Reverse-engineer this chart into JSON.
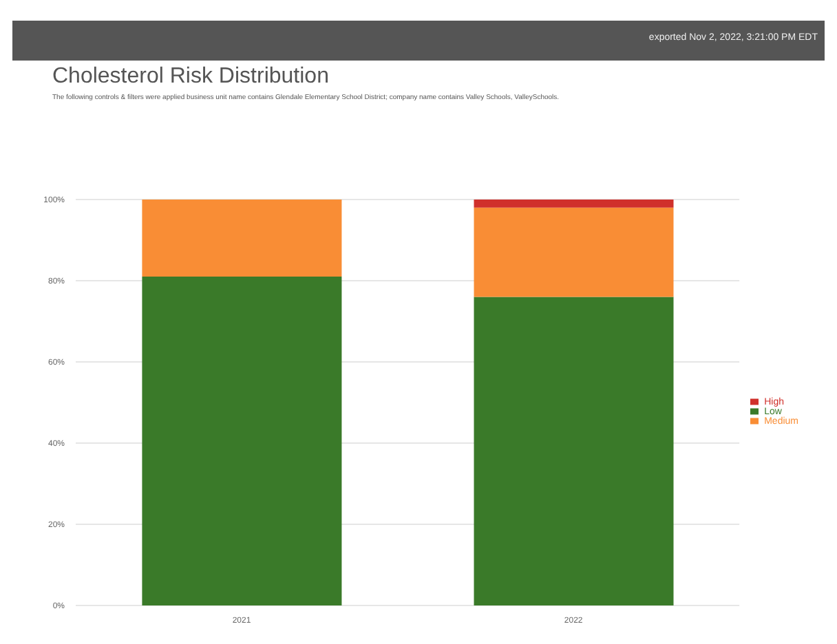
{
  "chart_data": {
    "type": "bar",
    "title": "Cholesterol Risk Distribution",
    "subtitle": "The following controls & filters were applied business unit name contains Glendale Elementary School District; company name contains Valley Schools, ValleySchools.",
    "annotations": [
      "exported Nov 2, 2022, 3:21:00 PM EDT"
    ],
    "categories": [
      "2021",
      "2022"
    ],
    "series": [
      {
        "name": "Low",
        "color": "#3a7a29",
        "values": [
          81,
          76
        ]
      },
      {
        "name": "Medium",
        "color": "#f98d35",
        "values": [
          19,
          22
        ]
      },
      {
        "name": "High",
        "color": "#d0302b",
        "values": [
          0,
          2
        ]
      }
    ],
    "stacked": true,
    "ylim": [
      0,
      100
    ],
    "yticks": [
      {
        "value": 0,
        "label": "0%"
      },
      {
        "value": 20,
        "label": "20%"
      },
      {
        "value": 40,
        "label": "40%"
      },
      {
        "value": 60,
        "label": "60%"
      },
      {
        "value": 80,
        "label": "80%"
      },
      {
        "value": 100,
        "label": "100%"
      }
    ],
    "grid": "y",
    "legend": "right"
  }
}
